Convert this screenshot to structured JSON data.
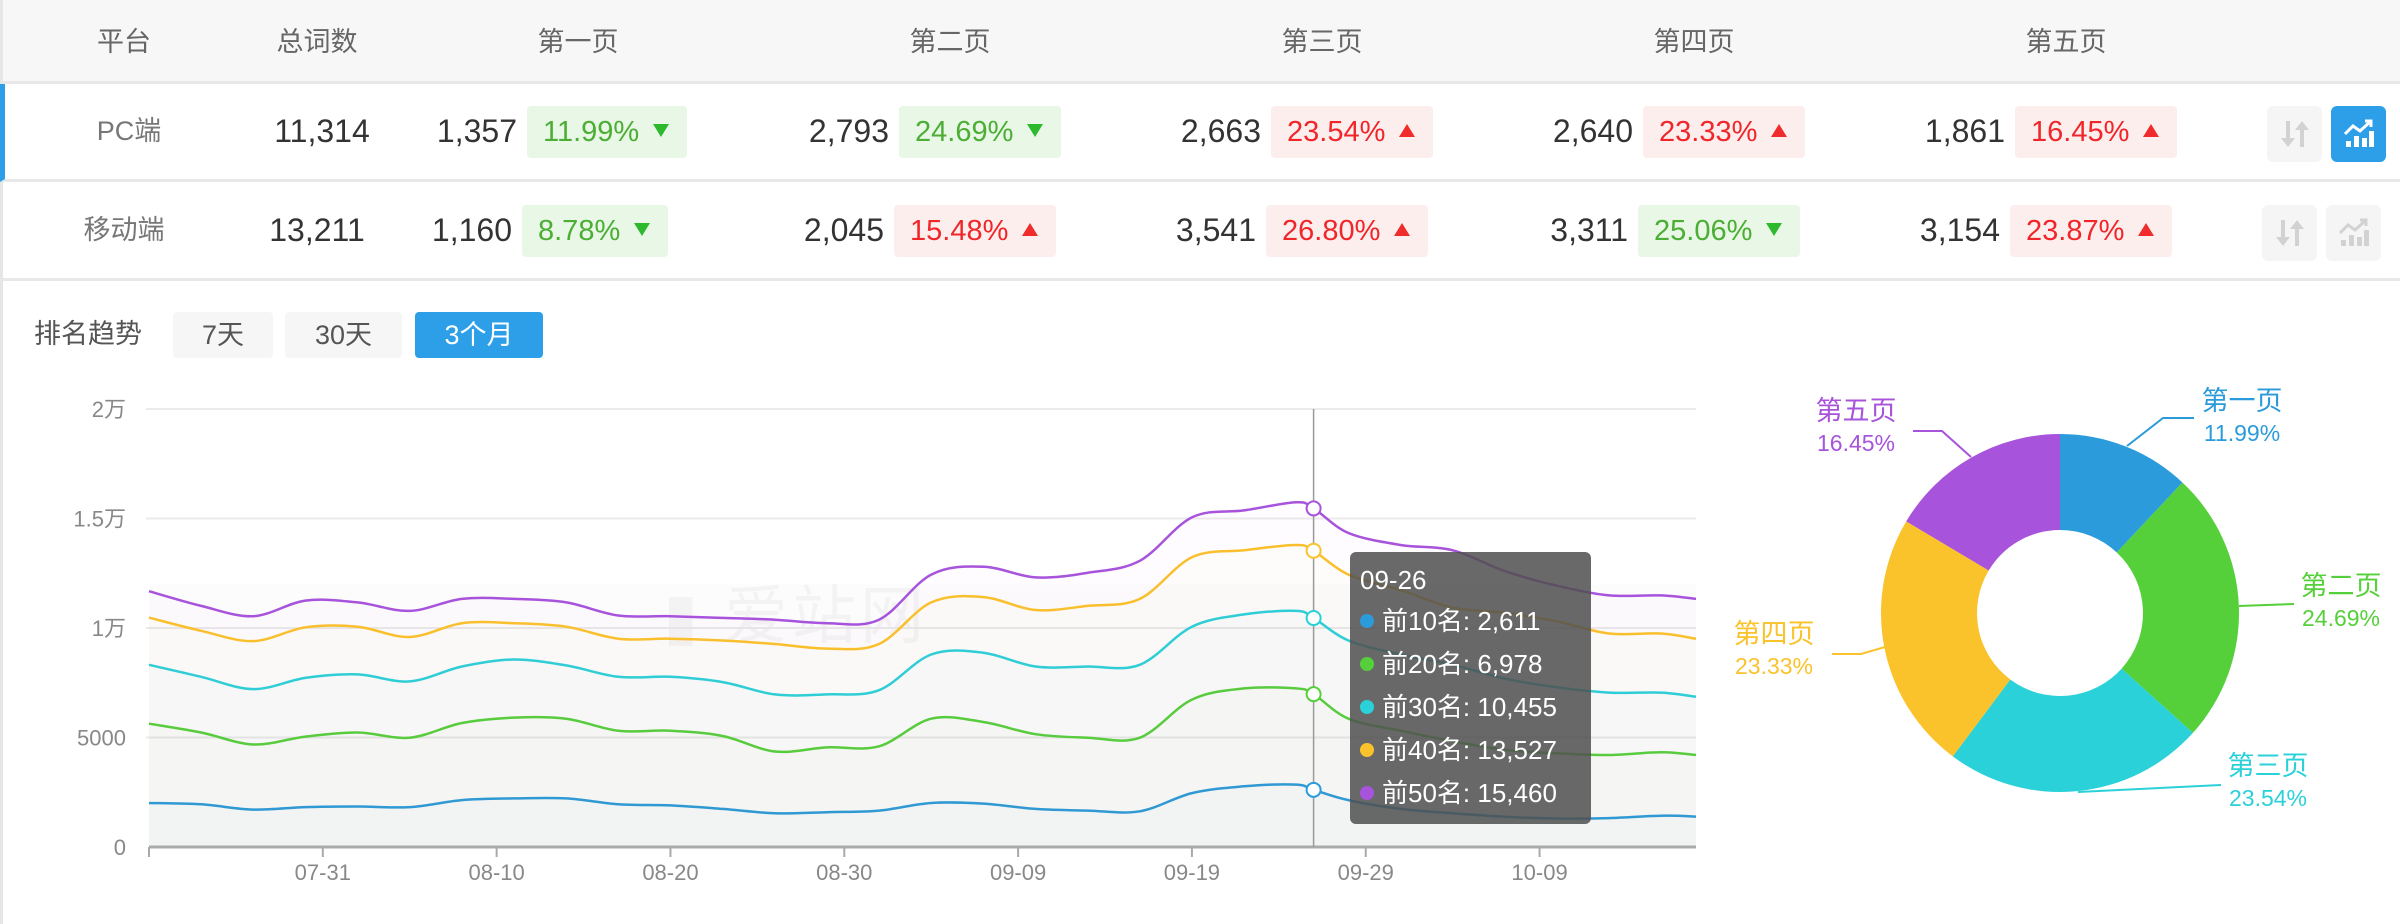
{
  "table": {
    "headers": [
      "平台",
      "总词数",
      "第一页",
      "第二页",
      "第三页",
      "第四页",
      "第五页"
    ],
    "rows": [
      {
        "platform": "PC端",
        "total": "11,314",
        "selected": true,
        "pages": [
          {
            "count": "1,357",
            "pct": "11.99%",
            "trend": "down"
          },
          {
            "count": "2,793",
            "pct": "24.69%",
            "trend": "down"
          },
          {
            "count": "2,663",
            "pct": "23.54%",
            "trend": "up"
          },
          {
            "count": "2,640",
            "pct": "23.33%",
            "trend": "up"
          },
          {
            "count": "1,861",
            "pct": "16.45%",
            "trend": "up"
          }
        ],
        "actions": [
          {
            "icon": "sort-arrows-icon",
            "active": false
          },
          {
            "icon": "trend-chart-icon",
            "active": true
          }
        ]
      },
      {
        "platform": "移动端",
        "total": "13,211",
        "selected": false,
        "pages": [
          {
            "count": "1,160",
            "pct": "8.78%",
            "trend": "down"
          },
          {
            "count": "2,045",
            "pct": "15.48%",
            "trend": "up"
          },
          {
            "count": "3,541",
            "pct": "26.80%",
            "trend": "up"
          },
          {
            "count": "3,311",
            "pct": "25.06%",
            "trend": "down"
          },
          {
            "count": "3,154",
            "pct": "23.87%",
            "trend": "up"
          }
        ],
        "actions": [
          {
            "icon": "sort-arrows-icon",
            "active": false
          },
          {
            "icon": "trend-chart-icon",
            "active": false
          }
        ]
      }
    ]
  },
  "trend": {
    "title": "排名趋势",
    "ranges": [
      "7天",
      "30天",
      "3个月"
    ],
    "active_range": "3个月",
    "watermark": "爱站网"
  },
  "colors": {
    "accent": "#2d9fe8",
    "up": "#f0262a",
    "down": "#4cae35"
  },
  "chart_data": [
    {
      "type": "line",
      "smooth": true,
      "ylim": [
        0,
        20000
      ],
      "yticks": [
        "0",
        "5000",
        "1万",
        "1.5万",
        "2万"
      ],
      "ytick_values": [
        0,
        5000,
        10000,
        15000,
        20000
      ],
      "xticks": [
        "07-31",
        "08-10",
        "08-20",
        "08-30",
        "09-09",
        "09-19",
        "09-29",
        "10-09"
      ],
      "grid": true,
      "x": [
        "07-21",
        "07-24",
        "07-27",
        "07-30",
        "08-02",
        "08-05",
        "08-08",
        "08-11",
        "08-14",
        "08-17",
        "08-20",
        "08-23",
        "08-26",
        "08-29",
        "09-01",
        "09-04",
        "09-07",
        "09-10",
        "09-13",
        "09-16",
        "09-19",
        "09-22",
        "09-25",
        "09-26",
        "09-28",
        "10-01",
        "10-04",
        "10-07",
        "10-10",
        "10-13",
        "10-16",
        "10-18"
      ],
      "series": [
        {
          "name": "前10名",
          "color": "#2b9bdb",
          "values": [
            2010,
            1950,
            1710,
            1820,
            1850,
            1820,
            2140,
            2220,
            2220,
            1950,
            1900,
            1740,
            1540,
            1590,
            1660,
            2010,
            1980,
            1740,
            1660,
            1630,
            2460,
            2770,
            2850,
            2611,
            2140,
            1740,
            1540,
            1380,
            1300,
            1320,
            1430,
            1390
          ]
        },
        {
          "name": "前20名",
          "color": "#56d03a",
          "values": [
            5630,
            5230,
            4680,
            5040,
            5230,
            4990,
            5660,
            5910,
            5860,
            5310,
            5310,
            5070,
            4360,
            4550,
            4600,
            5860,
            5710,
            5150,
            4990,
            4990,
            6730,
            7240,
            7240,
            6978,
            5860,
            5310,
            4830,
            4440,
            4280,
            4200,
            4330,
            4200
          ]
        },
        {
          "name": "前30名",
          "color": "#2ad1d9",
          "values": [
            8320,
            7770,
            7210,
            7720,
            7880,
            7560,
            8240,
            8560,
            8290,
            7770,
            7770,
            7530,
            6970,
            6970,
            7160,
            8790,
            8870,
            8240,
            8240,
            8320,
            10060,
            10620,
            10780,
            10455,
            9430,
            8790,
            8320,
            7690,
            7290,
            7050,
            7050,
            6860
          ]
        },
        {
          "name": "前40名",
          "color": "#fac22b",
          "values": [
            10475,
            9870,
            9400,
            10030,
            10060,
            9590,
            10220,
            10220,
            10060,
            9510,
            9510,
            9430,
            9270,
            9060,
            9270,
            11170,
            11410,
            10820,
            11010,
            11330,
            13230,
            13550,
            13790,
            13527,
            12440,
            11730,
            10930,
            10700,
            10300,
            9750,
            9750,
            9510
          ]
        },
        {
          "name": "前50名",
          "color": "#a753dc",
          "values": [
            11680,
            11010,
            10540,
            11250,
            11170,
            10780,
            11330,
            11330,
            11170,
            10570,
            10540,
            10460,
            10380,
            10220,
            10380,
            12440,
            12800,
            12310,
            12520,
            13070,
            15050,
            15370,
            15740,
            15460,
            14340,
            13790,
            13550,
            12600,
            11930,
            11490,
            11490,
            11330
          ]
        }
      ],
      "tooltip": {
        "title": "09-26",
        "items": [
          {
            "label": "前10名",
            "value": "2,611",
            "color": "#2b9bdb"
          },
          {
            "label": "前20名",
            "value": "6,978",
            "color": "#56d03a"
          },
          {
            "label": "前30名",
            "value": "10,455",
            "color": "#2ad1d9"
          },
          {
            "label": "前40名",
            "value": "13,527",
            "color": "#fac22b"
          },
          {
            "label": "前50名",
            "value": "15,460",
            "color": "#a753dc"
          }
        ]
      }
    },
    {
      "type": "pie",
      "donut": true,
      "slices": [
        {
          "name": "第一页",
          "value": 11.99,
          "label": "11.99%",
          "color": "#2b9bdb"
        },
        {
          "name": "第二页",
          "value": 24.69,
          "label": "24.69%",
          "color": "#56d03a"
        },
        {
          "name": "第三页",
          "value": 23.54,
          "label": "23.54%",
          "color": "#2ad1d9"
        },
        {
          "name": "第四页",
          "value": 23.33,
          "label": "23.33%",
          "color": "#fac22b"
        },
        {
          "name": "第五页",
          "value": 16.45,
          "label": "16.45%",
          "color": "#a753dc"
        }
      ]
    }
  ]
}
